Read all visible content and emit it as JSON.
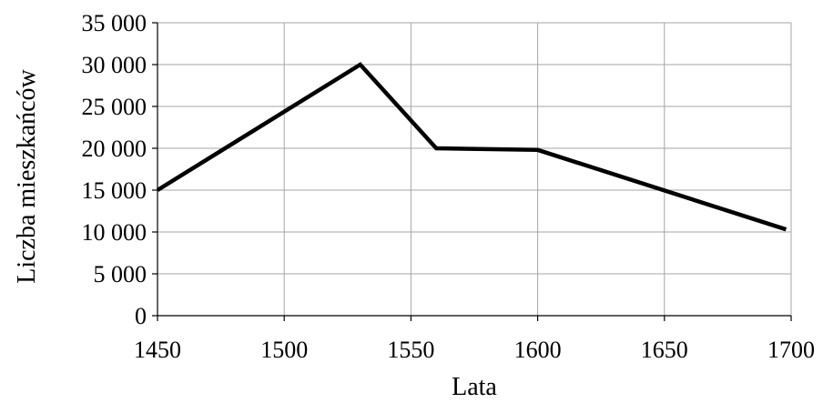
{
  "chart_data": {
    "type": "line",
    "title": "",
    "xlabel": "Lata",
    "ylabel": "Liczba mieszkańców",
    "x_ticks": [
      1450,
      1500,
      1550,
      1600,
      1650,
      1700
    ],
    "y_ticks": [
      0,
      5000,
      10000,
      15000,
      20000,
      25000,
      30000,
      35000
    ],
    "y_tick_labels": [
      "0",
      "5 000",
      "10 000",
      "15 000",
      "20 000",
      "25 000",
      "30 000",
      "35 000"
    ],
    "xlim": [
      1450,
      1700
    ],
    "ylim": [
      0,
      35000
    ],
    "grid": true,
    "series": [
      {
        "x": [
          1450,
          1530,
          1560,
          1600,
          1698
        ],
        "values": [
          15000,
          30000,
          20000,
          19800,
          10300
        ]
      }
    ],
    "colors": {
      "line": "#000000",
      "grid": "#a6a6a6",
      "axis": "#000000"
    }
  }
}
